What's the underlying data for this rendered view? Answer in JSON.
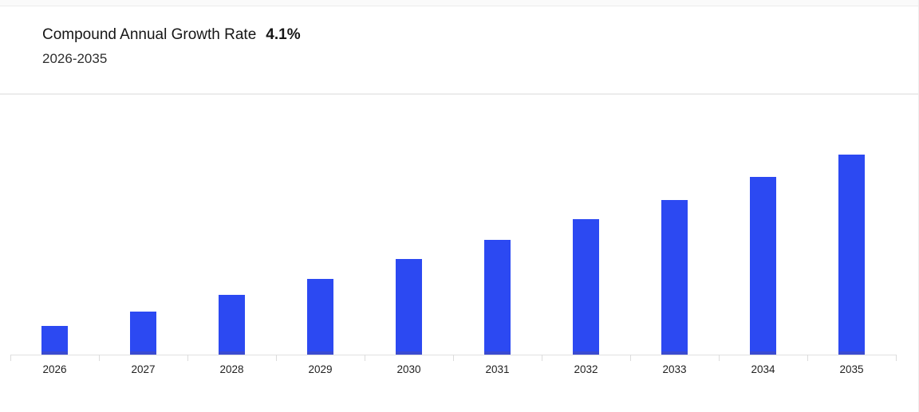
{
  "header": {
    "title": "Compound Annual Growth Rate",
    "cagr_value": "4.1%",
    "subtitle": "2026-2035"
  },
  "colors": {
    "bar_fill": "#2c49f2",
    "bar_base_band": "#3a4bd2",
    "axis_line": "#e0e0e0",
    "tick": "#dcdcdc",
    "label_text": "#1f1f1f",
    "title_text": "#161616",
    "subtitle_text": "#2e2e2e",
    "divider": "#ececec"
  },
  "chart_data": {
    "type": "bar",
    "title": "Compound Annual Growth Rate 4.1%",
    "subtitle": "2026-2035",
    "categories": [
      "2026",
      "2027",
      "2028",
      "2029",
      "2030",
      "2031",
      "2032",
      "2033",
      "2034",
      "2035"
    ],
    "values": [
      36,
      54,
      75,
      95,
      120,
      144,
      170,
      194,
      223,
      251
    ],
    "value_unit": "relative-bar-height-px (no y-axis values shown)",
    "values_normalized_to_2035": [
      14.3,
      21.5,
      29.9,
      37.8,
      47.8,
      57.4,
      67.7,
      77.3,
      88.8,
      100
    ],
    "annotation": "Compound Annual Growth Rate 4.1% over 2026-2035",
    "xlabel": "",
    "ylabel": "",
    "y_axis_labels_visible": false,
    "grid": false,
    "legend": false,
    "bar_color": "#2c49f2",
    "bar_base_band_color": "#3a4bd2"
  }
}
